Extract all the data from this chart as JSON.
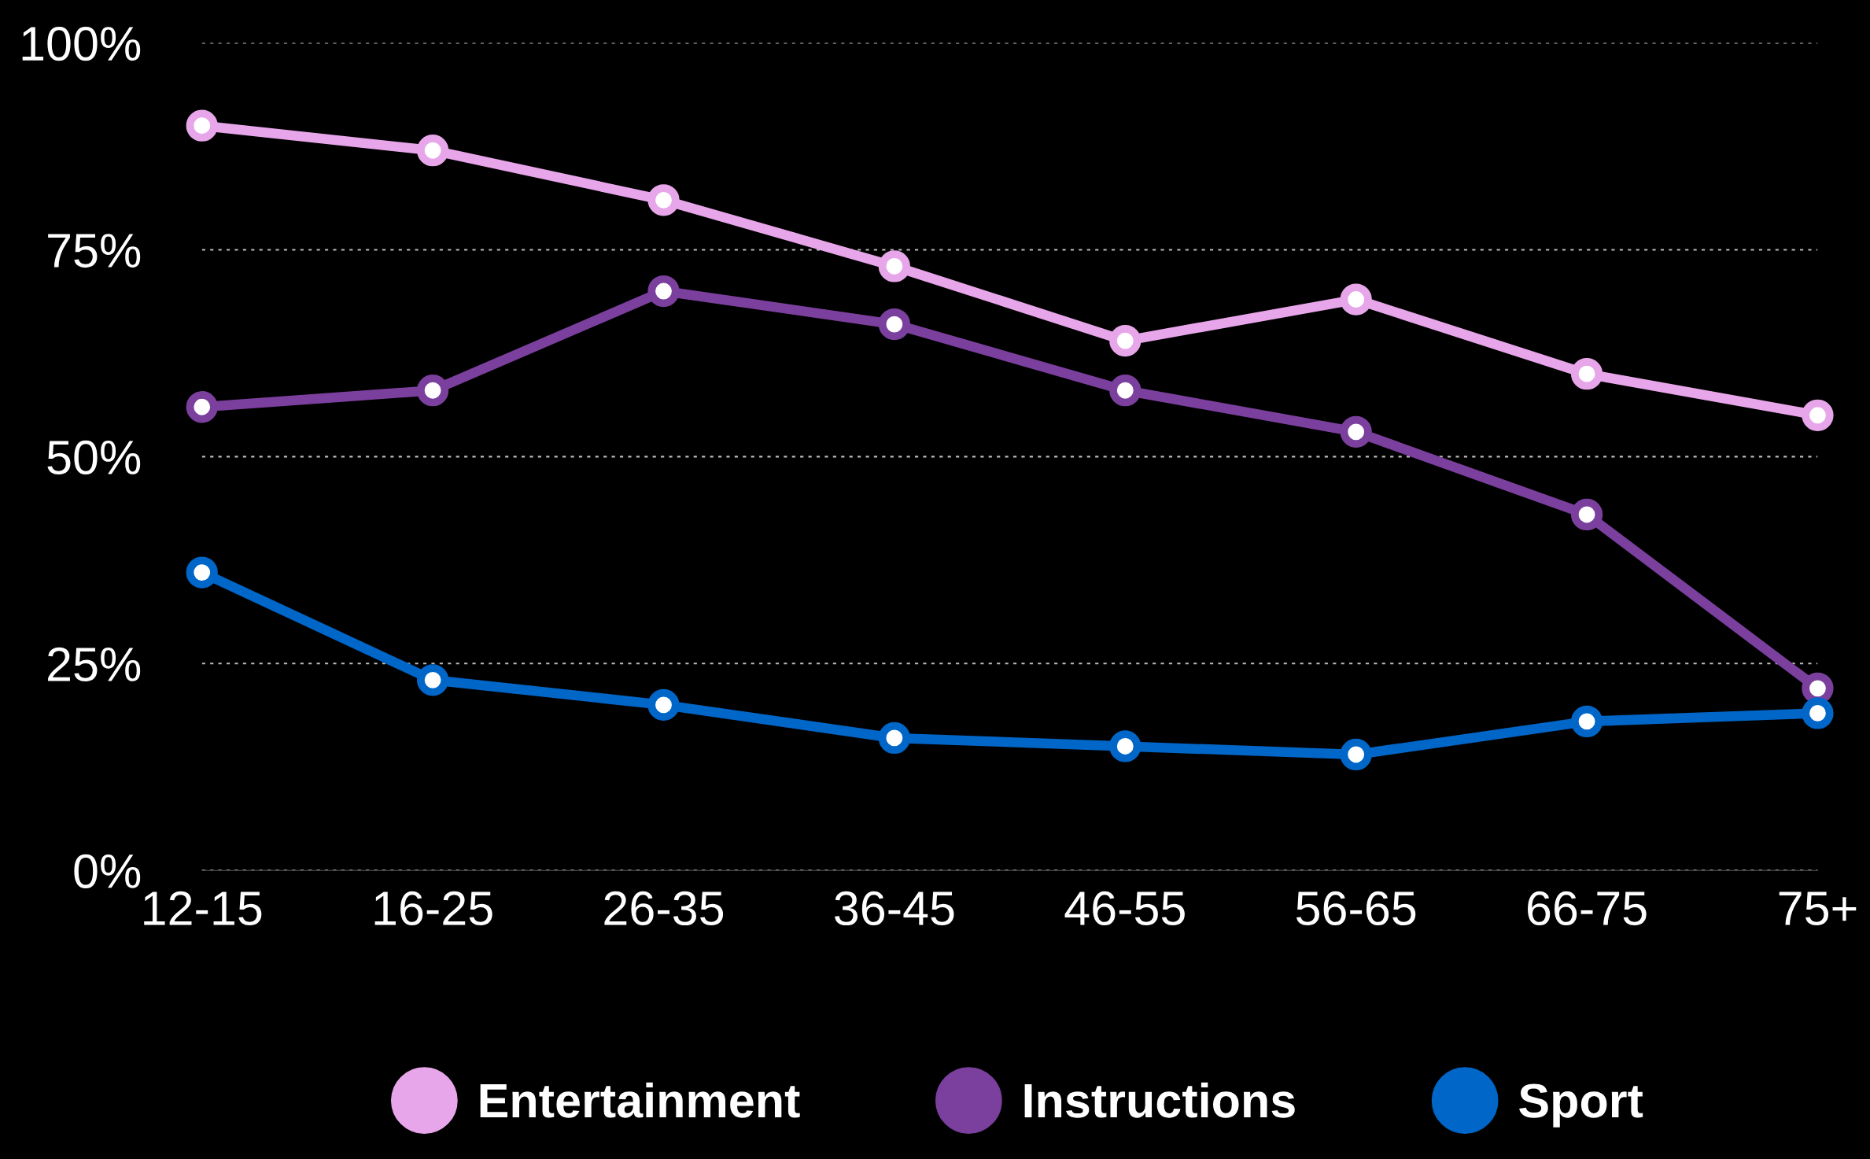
{
  "chart_data": {
    "type": "line",
    "categories": [
      "12-15",
      "16-25",
      "26-35",
      "36-45",
      "46-55",
      "56-65",
      "66-75",
      "75+"
    ],
    "series": [
      {
        "name": "Entertainment",
        "color": "#e8a6ea",
        "values": [
          90,
          87,
          81,
          73,
          64,
          69,
          60,
          55
        ]
      },
      {
        "name": "Instructions",
        "color": "#7b3f9e",
        "values": [
          56,
          58,
          70,
          66,
          58,
          53,
          43,
          22
        ]
      },
      {
        "name": "Sport",
        "color": "#0066c8",
        "values": [
          36,
          23,
          20,
          16,
          15,
          14,
          18,
          19
        ]
      }
    ],
    "ylim": [
      0,
      100
    ],
    "yticks": [
      {
        "value": 0,
        "label": "0%"
      },
      {
        "value": 25,
        "label": "25%"
      },
      {
        "value": 50,
        "label": "50%"
      },
      {
        "value": 75,
        "label": "75%"
      },
      {
        "value": 100,
        "label": "100%"
      }
    ],
    "grid": "y",
    "legend": "bottom",
    "marker": "circle",
    "line_style": "solid"
  }
}
